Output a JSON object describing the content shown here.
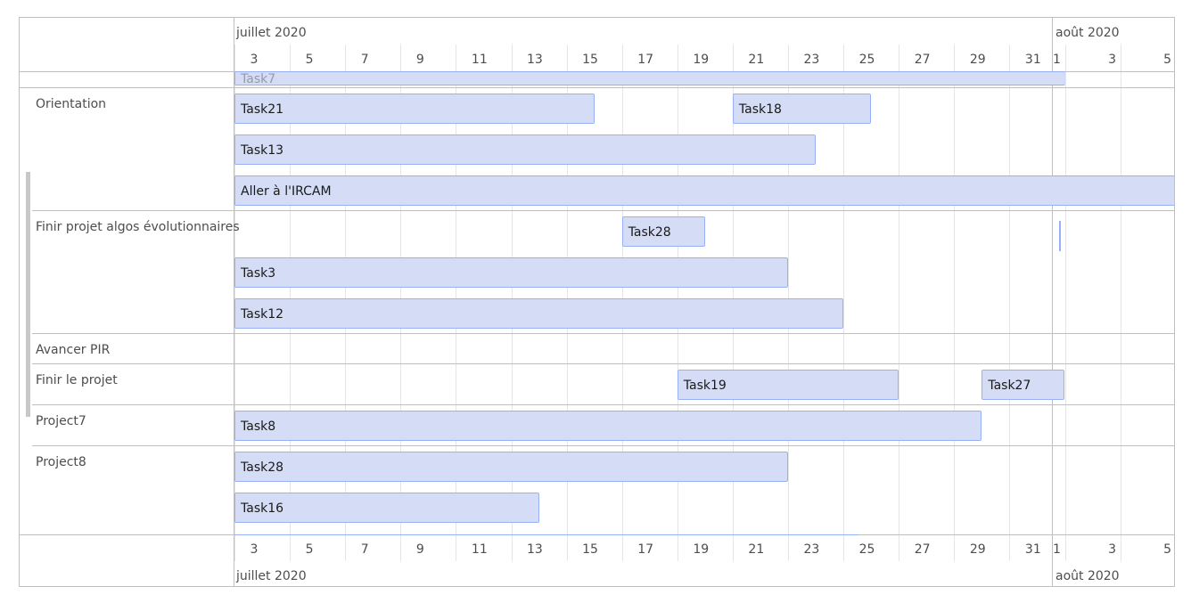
{
  "axis": {
    "month_jul": "juillet 2020",
    "month_aug": "août 2020",
    "days": [
      "3",
      "5",
      "7",
      "9",
      "11",
      "13",
      "15",
      "17",
      "19",
      "21",
      "23",
      "25",
      "27",
      "29",
      "31",
      "1",
      "3",
      "5"
    ]
  },
  "groups": [
    {
      "label": ""
    },
    {
      "label": "Orientation"
    },
    {
      "label": "Finir projet algos évolutionnaires"
    },
    {
      "label": "Avancer PIR"
    },
    {
      "label": "Finir le projet"
    },
    {
      "label": "Project7"
    },
    {
      "label": "Project8"
    }
  ],
  "items": [
    {
      "label": "Task7",
      "start": "2020-07-01",
      "end": "2020-07-31",
      "group": 0,
      "partially_hidden": true
    },
    {
      "label": "Task21",
      "start": "2020-07-01",
      "end": "2020-07-14",
      "group": 1
    },
    {
      "label": "Task18",
      "start": "2020-07-20",
      "end": "2020-07-24",
      "group": 1
    },
    {
      "label": "Task13",
      "start": "2020-07-01",
      "end": "2020-07-22",
      "group": 1
    },
    {
      "label": "Aller à l'IRCAM",
      "start": "2020-07-01",
      "end": "2020-08-06",
      "group": 1
    },
    {
      "label": "Task28",
      "start": "2020-07-16",
      "end": "2020-07-18",
      "group": 2
    },
    {
      "label": "",
      "start": "2020-07-31",
      "end": "2020-07-31",
      "group": 2,
      "point": true
    },
    {
      "label": "Task3",
      "start": "2020-07-01",
      "end": "2020-07-21",
      "group": 2
    },
    {
      "label": "Task12",
      "start": "2020-07-01",
      "end": "2020-07-23",
      "group": 2
    },
    {
      "label": "Task19",
      "start": "2020-07-18",
      "end": "2020-07-25",
      "group": 4
    },
    {
      "label": "Task27",
      "start": "2020-07-29",
      "end": "2020-07-31",
      "group": 4
    },
    {
      "label": "Task8",
      "start": "2020-07-01",
      "end": "2020-07-28",
      "group": 5
    },
    {
      "label": "Task28",
      "start": "2020-07-01",
      "end": "2020-07-21",
      "group": 6
    },
    {
      "label": "Task16",
      "start": "2020-07-01",
      "end": "2020-07-12",
      "group": 6
    }
  ],
  "colors": {
    "item_fill": "#d5ddf6",
    "item_border": "#97b0f8",
    "grid_minor": "#e5e5e5",
    "grid_major": "#bfbfbf",
    "text": "#4d4d4d"
  }
}
